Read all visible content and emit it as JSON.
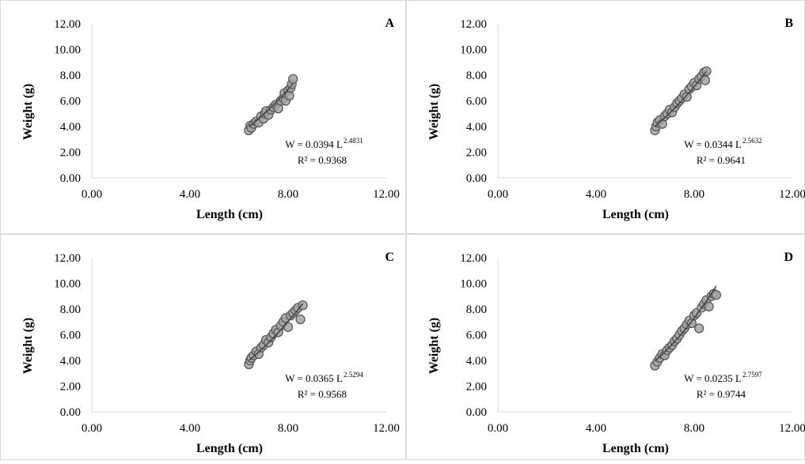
{
  "chart_data": [
    {
      "type": "scatter",
      "panel_label": "A",
      "xlabel": "Length (cm)",
      "ylabel": "Weight (g)",
      "xlim": [
        0,
        12
      ],
      "ylim": [
        0,
        12
      ],
      "x_ticks": [
        "0.00",
        "4.00",
        "8.00",
        "12.00"
      ],
      "y_ticks": [
        "0.00",
        "2.00",
        "4.00",
        "6.00",
        "8.00",
        "10.00",
        "12.00"
      ],
      "equation_prefix": "W = 0.0394 L",
      "equation_exponent": "2.4831",
      "r_squared": "R² = 0.9368",
      "trendline": {
        "a": 0.0394,
        "b": 2.4831,
        "x_range": [
          6.4,
          8.2
        ]
      },
      "points": [
        [
          6.4,
          3.7
        ],
        [
          6.45,
          4.05
        ],
        [
          6.5,
          3.9
        ],
        [
          6.6,
          4.2
        ],
        [
          6.7,
          4.4
        ],
        [
          6.8,
          4.3
        ],
        [
          6.9,
          4.8
        ],
        [
          7.0,
          4.6
        ],
        [
          7.05,
          5.0
        ],
        [
          7.1,
          5.2
        ],
        [
          7.2,
          4.9
        ],
        [
          7.3,
          5.3
        ],
        [
          7.4,
          5.5
        ],
        [
          7.5,
          5.7
        ],
        [
          7.6,
          5.4
        ],
        [
          7.7,
          6.0
        ],
        [
          7.8,
          6.2
        ],
        [
          7.85,
          6.6
        ],
        [
          7.9,
          6.0
        ],
        [
          8.0,
          6.8
        ],
        [
          8.05,
          6.4
        ],
        [
          8.1,
          7.0
        ],
        [
          8.15,
          7.3
        ],
        [
          8.2,
          7.7
        ]
      ]
    },
    {
      "type": "scatter",
      "panel_label": "B",
      "xlabel": "Length (cm)",
      "ylabel": "Weight (g)",
      "xlim": [
        0,
        12
      ],
      "ylim": [
        0,
        12
      ],
      "x_ticks": [
        "0.00",
        "4.00",
        "8.00",
        "12.00"
      ],
      "y_ticks": [
        "0.00",
        "2.00",
        "4.00",
        "6.00",
        "8.00",
        "10.00",
        "12.00"
      ],
      "equation_prefix": "W = 0.0344 L",
      "equation_exponent": "2.5632",
      "r_squared": "R² = 0.9641",
      "trendline": {
        "a": 0.0344,
        "b": 2.5632,
        "x_range": [
          6.4,
          8.5
        ]
      },
      "points": [
        [
          6.4,
          3.7
        ],
        [
          6.45,
          4.0
        ],
        [
          6.5,
          4.3
        ],
        [
          6.6,
          4.5
        ],
        [
          6.7,
          4.2
        ],
        [
          6.8,
          4.8
        ],
        [
          6.9,
          5.0
        ],
        [
          7.0,
          5.3
        ],
        [
          7.1,
          5.1
        ],
        [
          7.2,
          5.5
        ],
        [
          7.3,
          5.8
        ],
        [
          7.4,
          6.0
        ],
        [
          7.5,
          6.2
        ],
        [
          7.6,
          6.5
        ],
        [
          7.7,
          6.3
        ],
        [
          7.8,
          6.9
        ],
        [
          7.9,
          7.1
        ],
        [
          8.0,
          7.4
        ],
        [
          8.1,
          7.2
        ],
        [
          8.2,
          7.7
        ],
        [
          8.3,
          7.9
        ],
        [
          8.4,
          8.2
        ],
        [
          8.45,
          7.6
        ],
        [
          8.5,
          8.3
        ]
      ]
    },
    {
      "type": "scatter",
      "panel_label": "C",
      "xlabel": "Length (cm)",
      "ylabel": "Weight (g)",
      "xlim": [
        0,
        12
      ],
      "ylim": [
        0,
        12
      ],
      "x_ticks": [
        "0.00",
        "4.00",
        "8.00",
        "12.00"
      ],
      "y_ticks": [
        "0.00",
        "2.00",
        "4.00",
        "6.00",
        "8.00",
        "10.00",
        "12.00"
      ],
      "equation_prefix": "W = 0.0365 L",
      "equation_exponent": "2.5294",
      "r_squared": "R² = 0.9568",
      "trendline": {
        "a": 0.0365,
        "b": 2.5294,
        "x_range": [
          6.4,
          8.6
        ]
      },
      "points": [
        [
          6.4,
          3.7
        ],
        [
          6.45,
          4.0
        ],
        [
          6.5,
          4.2
        ],
        [
          6.6,
          4.4
        ],
        [
          6.7,
          4.7
        ],
        [
          6.8,
          4.5
        ],
        [
          6.9,
          5.0
        ],
        [
          7.0,
          5.2
        ],
        [
          7.1,
          5.6
        ],
        [
          7.2,
          5.4
        ],
        [
          7.3,
          5.8
        ],
        [
          7.4,
          6.1
        ],
        [
          7.5,
          6.4
        ],
        [
          7.6,
          6.2
        ],
        [
          7.7,
          6.7
        ],
        [
          7.8,
          7.0
        ],
        [
          7.9,
          7.3
        ],
        [
          8.0,
          6.6
        ],
        [
          8.1,
          7.5
        ],
        [
          8.2,
          7.7
        ],
        [
          8.3,
          7.9
        ],
        [
          8.4,
          8.1
        ],
        [
          8.5,
          7.2
        ],
        [
          8.6,
          8.3
        ]
      ]
    },
    {
      "type": "scatter",
      "panel_label": "D",
      "xlabel": "Length (cm)",
      "ylabel": "Weight (g)",
      "xlim": [
        0,
        12
      ],
      "ylim": [
        0,
        12
      ],
      "x_ticks": [
        "0.00",
        "4.00",
        "8.00",
        "12.00"
      ],
      "y_ticks": [
        "0.00",
        "2.00",
        "4.00",
        "6.00",
        "8.00",
        "10.00",
        "12.00"
      ],
      "equation_prefix": "W = 0.0235 L",
      "equation_exponent": "2.7597",
      "r_squared": "R² = 0.9744",
      "trendline": {
        "a": 0.0235,
        "b": 2.7597,
        "x_range": [
          6.4,
          8.9
        ]
      },
      "points": [
        [
          6.4,
          3.6
        ],
        [
          6.5,
          3.9
        ],
        [
          6.6,
          4.2
        ],
        [
          6.7,
          4.5
        ],
        [
          6.8,
          4.4
        ],
        [
          6.9,
          4.8
        ],
        [
          7.0,
          5.0
        ],
        [
          7.1,
          5.2
        ],
        [
          7.2,
          5.5
        ],
        [
          7.3,
          5.7
        ],
        [
          7.4,
          6.0
        ],
        [
          7.5,
          6.3
        ],
        [
          7.6,
          6.5
        ],
        [
          7.7,
          6.8
        ],
        [
          7.8,
          7.1
        ],
        [
          7.9,
          6.9
        ],
        [
          8.0,
          7.5
        ],
        [
          8.1,
          7.7
        ],
        [
          8.2,
          6.5
        ],
        [
          8.3,
          8.1
        ],
        [
          8.4,
          8.4
        ],
        [
          8.5,
          8.7
        ],
        [
          8.6,
          8.2
        ],
        [
          8.7,
          9.0
        ],
        [
          8.8,
          9.2
        ],
        [
          8.9,
          9.1
        ]
      ]
    }
  ]
}
